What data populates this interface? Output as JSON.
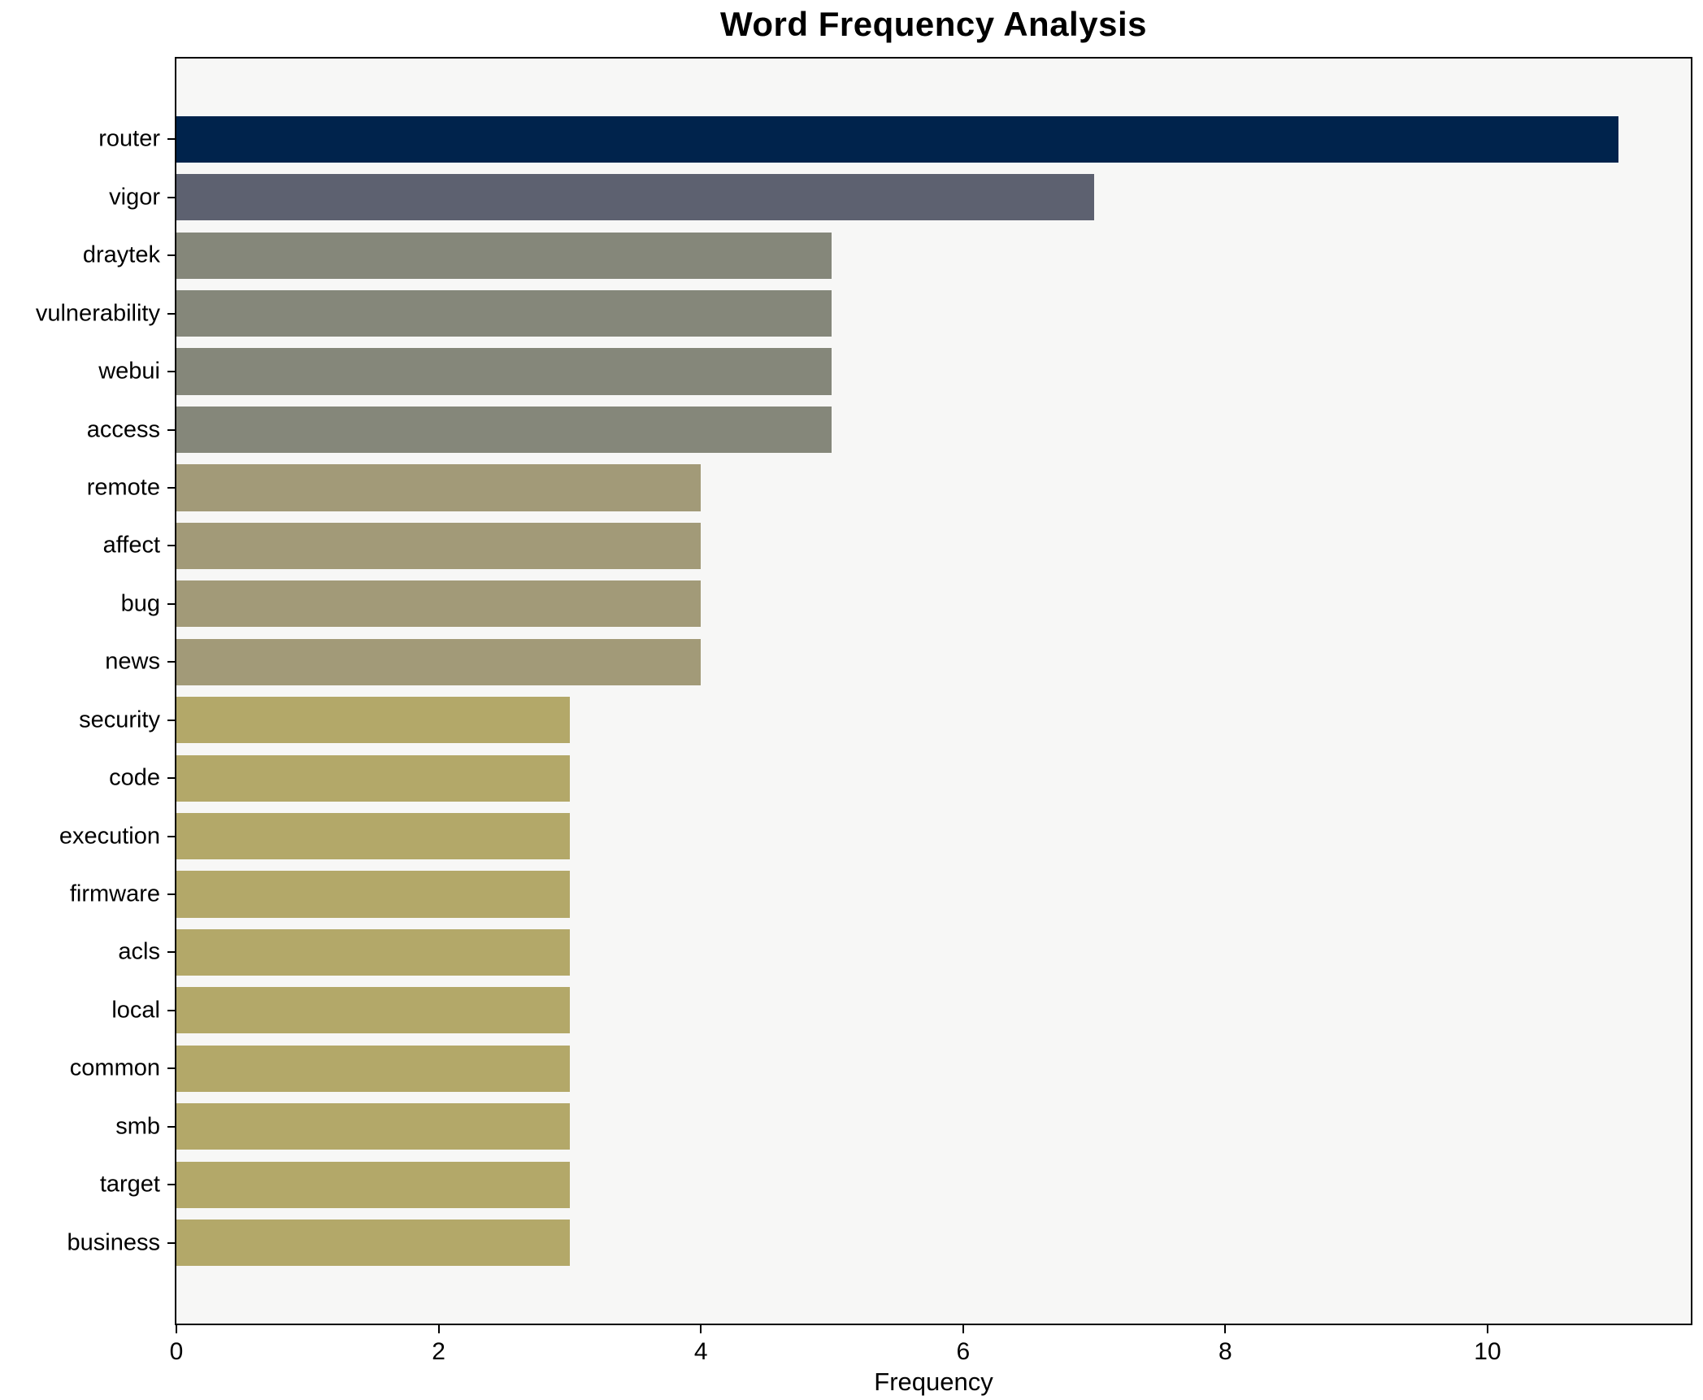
{
  "chart_data": {
    "type": "bar",
    "orientation": "horizontal",
    "title": "Word Frequency Analysis",
    "xlabel": "Frequency",
    "ylabel": "",
    "categories": [
      "router",
      "vigor",
      "draytek",
      "vulnerability",
      "webui",
      "access",
      "remote",
      "affect",
      "bug",
      "news",
      "security",
      "code",
      "execution",
      "firmware",
      "acls",
      "local",
      "common",
      "smb",
      "target",
      "business"
    ],
    "values": [
      11,
      7,
      5,
      5,
      5,
      5,
      4,
      4,
      4,
      4,
      3,
      3,
      3,
      3,
      3,
      3,
      3,
      3,
      3,
      3
    ],
    "bar_colors": [
      "#00234c",
      "#5d6170",
      "#85877a",
      "#85877a",
      "#85877a",
      "#85877a",
      "#a29a78",
      "#a29a78",
      "#a29a78",
      "#a29a78",
      "#b3a869",
      "#b3a869",
      "#b3a869",
      "#b3a869",
      "#b3a869",
      "#b3a869",
      "#b3a869",
      "#b3a869",
      "#b3a869",
      "#b3a869"
    ],
    "xlim": [
      0,
      11.55
    ],
    "xticks": [
      0,
      2,
      4,
      6,
      8,
      10
    ],
    "grid": false,
    "legend": null,
    "plot_background": "#f7f7f6",
    "figure_background": "#ffffff",
    "spine_color": "#000000"
  }
}
